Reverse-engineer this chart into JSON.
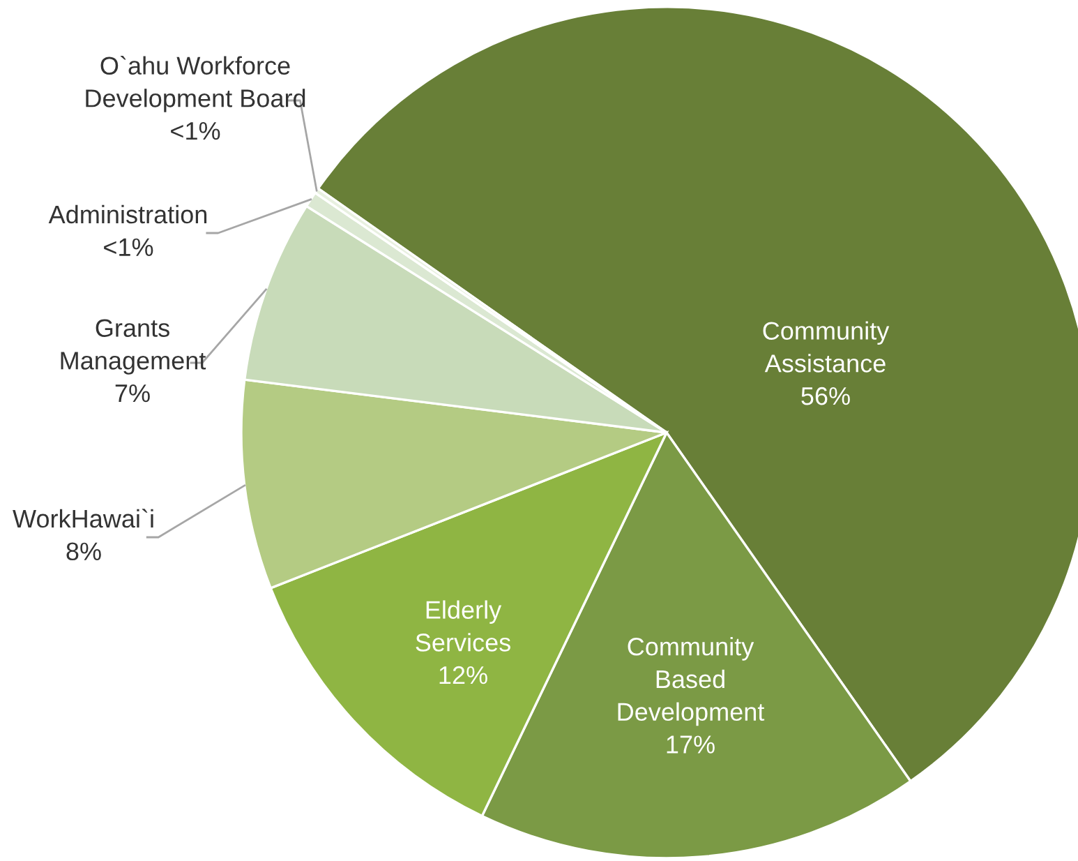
{
  "chart_data": {
    "type": "pie",
    "categories": [
      "Community\nAssistance",
      "Community\nBased\nDevelopment",
      "Elderly\nServices",
      "WorkHawai`i",
      "Grants\nManagement",
      "Administration",
      "O`ahu Workforce\nDevelopment Board"
    ],
    "values": [
      56,
      17,
      12,
      8,
      7,
      0.6,
      0.2
    ],
    "value_labels": [
      "56%",
      "17%",
      "12%",
      "8%",
      "7%",
      "<1%",
      "<1%"
    ],
    "colors": [
      "#687f37",
      "#7b9a45",
      "#8fb543",
      "#b4cb83",
      "#c8dbb9",
      "#dbe8d2",
      "#e8f0e0"
    ]
  }
}
